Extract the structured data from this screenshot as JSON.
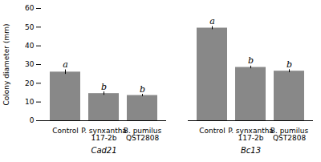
{
  "chart_data": {
    "type": "bar",
    "categories": [
      "Control",
      "P. synxantha\n117-2b",
      "B. pumilus\nQST2808",
      "Control",
      "P. synxantha\n117-2b",
      "B. pumilus\nQST2808"
    ],
    "groups": [
      "Cad21",
      "Cad21",
      "Cad21",
      "Bc13",
      "Bc13",
      "Bc13"
    ],
    "values": [
      26.0,
      14.5,
      13.5,
      49.5,
      28.5,
      26.5
    ],
    "errors": [
      1.2,
      0.9,
      0.6,
      0.8,
      0.7,
      0.8
    ],
    "letters": [
      "a",
      "b",
      "b",
      "a",
      "b",
      "b"
    ],
    "color": "#888888",
    "ylabel": "Colony diameter (mm)",
    "ylim": [
      0,
      60
    ],
    "yticks": [
      0,
      10,
      20,
      30,
      40,
      50,
      60
    ]
  }
}
